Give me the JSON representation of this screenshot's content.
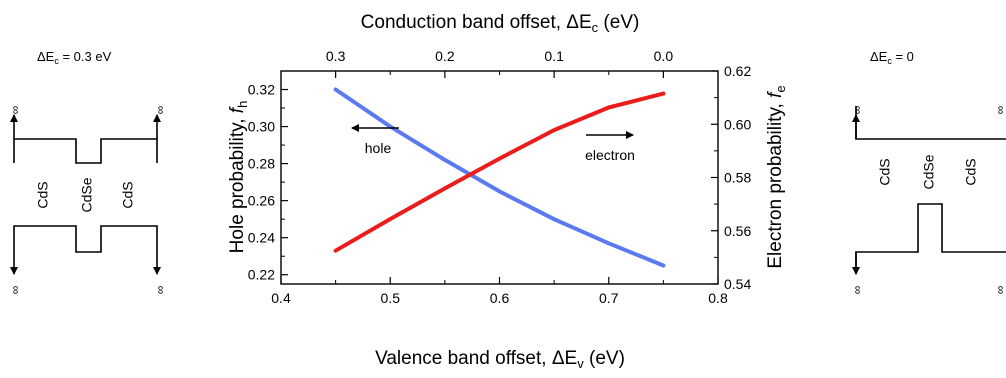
{
  "chart_data": {
    "type": "line",
    "xlabel": "Valence band offset, ΔE",
    "xlabel_sub": "v",
    "xlabel_unit": " (eV)",
    "top_xlabel": "Conduction band offset, ΔE",
    "top_xlabel_sub": "c",
    "top_xlabel_unit": " (eV)",
    "ylabel_left": "Hole probability, ",
    "ylabel_left_var": "f",
    "ylabel_left_sub": "h",
    "ylabel_right": "Electron probability, ",
    "ylabel_right_var": "f",
    "ylabel_right_sub": "e",
    "xlim": [
      0.4,
      0.8
    ],
    "ylim_left": [
      0.215,
      0.33
    ],
    "ylim_right": [
      0.54,
      0.62
    ],
    "x_ticks": [
      "0.4",
      "0.5",
      "0.6",
      "0.7",
      "0.8"
    ],
    "top_x_ticks": [
      "0.3",
      "0.2",
      "0.1",
      "0.0"
    ],
    "top_x_tick_values": [
      0.3,
      0.2,
      0.1,
      0.0
    ],
    "y_left_ticks": [
      "0.22",
      "0.24",
      "0.26",
      "0.28",
      "0.30",
      "0.32"
    ],
    "y_right_ticks": [
      "0.54",
      "0.56",
      "0.58",
      "0.60",
      "0.62"
    ],
    "grid": false,
    "series": [
      {
        "axis": "left",
        "color": "#5b79f0",
        "x": [
          0.45,
          0.5,
          0.55,
          0.6,
          0.65,
          0.7,
          0.75
        ],
        "values": [
          0.32,
          0.3,
          0.282,
          0.265,
          0.25,
          0.237,
          0.225
        ]
      },
      {
        "axis": "right",
        "color": "#ea1c1c",
        "x": [
          0.45,
          0.5,
          0.55,
          0.6,
          0.65,
          0.7,
          0.75
        ],
        "values": [
          0.5525,
          0.5644,
          0.5759,
          0.5871,
          0.5978,
          0.6063,
          0.6115
        ]
      }
    ],
    "annotations": {
      "hole": "hole",
      "electron": "electron"
    }
  },
  "left_diagram": {
    "title_prefix": "ΔE",
    "title_sub": "c",
    "title_suffix": " = 0.3 eV",
    "labels": [
      "CdS",
      "CdSe",
      "CdS"
    ],
    "infinity": "∞"
  },
  "right_diagram": {
    "title_prefix": "ΔE",
    "title_sub": "c",
    "title_suffix": " = 0",
    "labels": [
      "CdS",
      "CdSe",
      "CdS"
    ],
    "infinity": "∞"
  }
}
